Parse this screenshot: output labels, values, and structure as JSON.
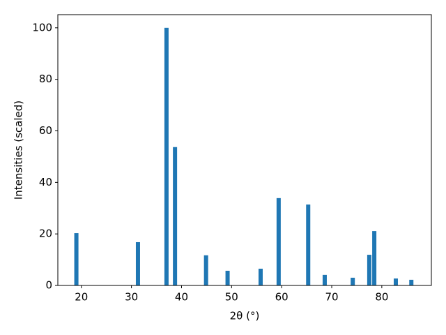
{
  "chart_data": {
    "type": "bar",
    "x_label": "2θ (°)",
    "y_label": "Intensities (scaled)",
    "x": [
      19.0,
      31.3,
      37.0,
      38.7,
      44.9,
      49.2,
      55.8,
      59.4,
      65.3,
      68.6,
      74.2,
      77.5,
      78.5,
      82.8,
      85.9
    ],
    "values": [
      20.3,
      16.8,
      100,
      53.7,
      11.7,
      5.7,
      6.5,
      33.9,
      31.4,
      4.1,
      3.0,
      11.9,
      21.1,
      2.7,
      2.2
    ],
    "color": "#1f77b4",
    "xlim": [
      15.3,
      89.9
    ],
    "xticks": [
      20,
      30,
      40,
      50,
      60,
      70,
      80
    ],
    "ylim": [
      0,
      105.1
    ],
    "yticks": [
      0,
      20,
      40,
      60,
      80,
      100
    ],
    "grid": false
  }
}
